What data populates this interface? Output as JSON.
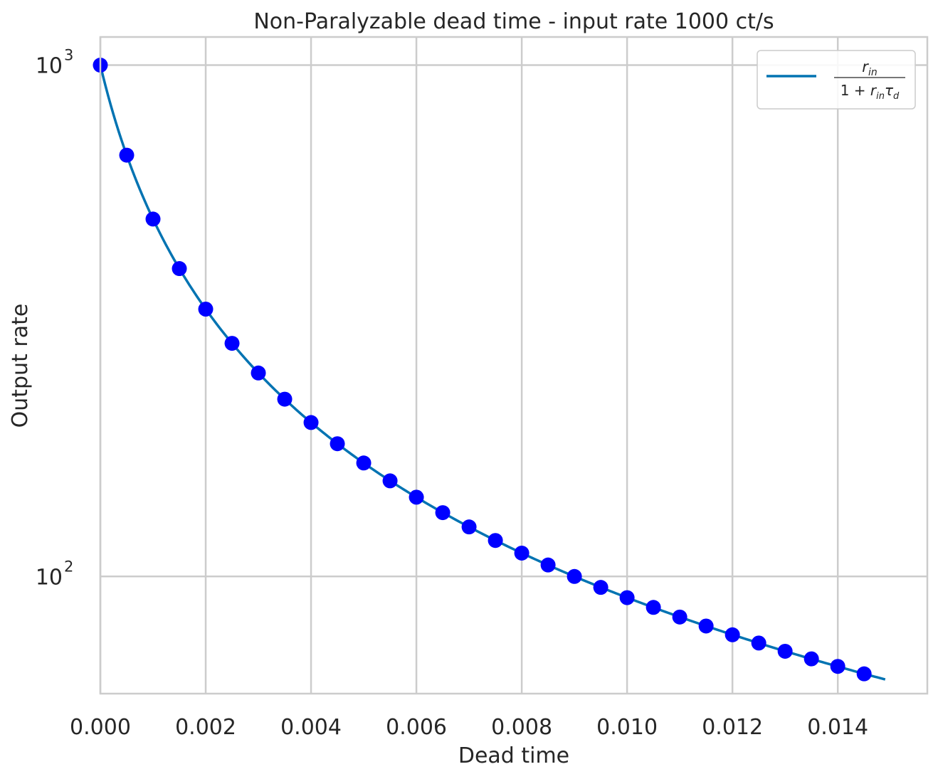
{
  "chart_data": {
    "type": "scatter",
    "title": "Non-Paralyzable dead time - input rate 1000 ct/s",
    "xlabel": "Dead time",
    "ylabel": "Output rate",
    "xlim": [
      0.0,
      0.0157
    ],
    "ylim": [
      59,
      1135
    ],
    "y_scale": "log",
    "x_ticks": [
      {
        "value": 0.0,
        "label": "0.000"
      },
      {
        "value": 0.002,
        "label": "0.002"
      },
      {
        "value": 0.004,
        "label": "0.004"
      },
      {
        "value": 0.006,
        "label": "0.006"
      },
      {
        "value": 0.008,
        "label": "0.008"
      },
      {
        "value": 0.01,
        "label": "0.010"
      },
      {
        "value": 0.012,
        "label": "0.012"
      },
      {
        "value": 0.014,
        "label": "0.014"
      }
    ],
    "y_ticks": [
      {
        "value": 100,
        "base": "10",
        "exponent": "2"
      },
      {
        "value": 1000,
        "base": "10",
        "exponent": "3"
      }
    ],
    "grid": true,
    "legend_position": "top-right",
    "input_rate": 1000,
    "series": [
      {
        "kind": "line",
        "color": "#0173b2",
        "legend": {
          "numerator": "r",
          "numerator_sub": "in",
          "denominator_prefix": "1 + ",
          "denominator_r": "r",
          "denominator_r_sub": "in",
          "denominator_tau": "τ",
          "denominator_tau_sub": "d"
        },
        "x_range": [
          0.0,
          0.0149
        ]
      },
      {
        "kind": "points",
        "color": "#0000ff",
        "x": [
          0.0,
          0.0005,
          0.001,
          0.0015,
          0.002,
          0.0025,
          0.003,
          0.0035,
          0.004,
          0.0045,
          0.005,
          0.0055,
          0.006,
          0.0065,
          0.007,
          0.0075,
          0.008,
          0.0085,
          0.009,
          0.0095,
          0.01,
          0.0105,
          0.011,
          0.0115,
          0.012,
          0.0125,
          0.013,
          0.0135,
          0.014,
          0.0145
        ],
        "y": [
          1000.0,
          666.7,
          500.0,
          400.0,
          333.3,
          285.7,
          250.0,
          222.2,
          200.0,
          181.8,
          166.7,
          153.8,
          142.9,
          133.3,
          125.0,
          117.6,
          111.1,
          105.3,
          100.0,
          95.2,
          90.9,
          87.0,
          83.3,
          80.0,
          76.9,
          74.1,
          71.4,
          69.0,
          66.7,
          64.5
        ]
      }
    ]
  }
}
